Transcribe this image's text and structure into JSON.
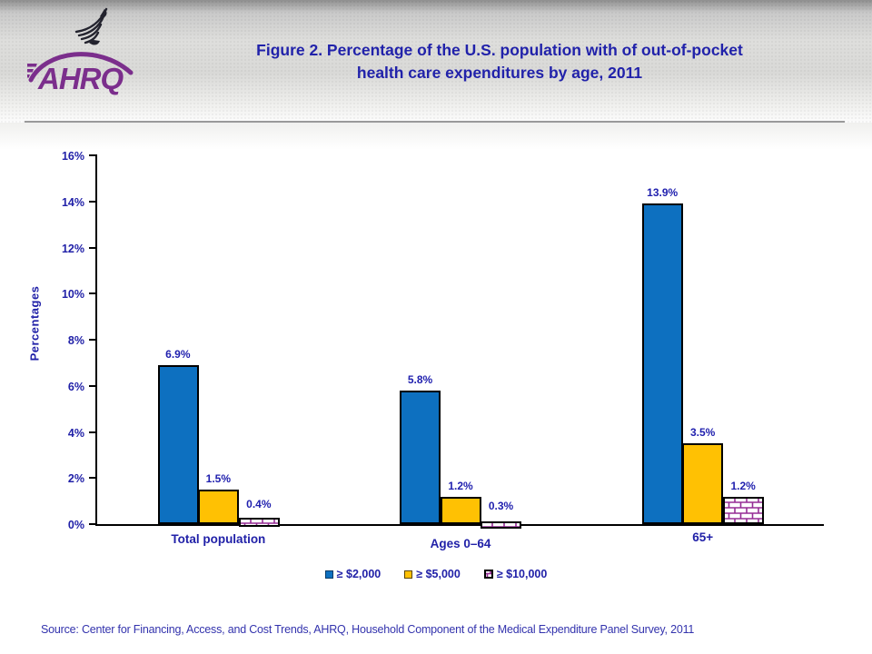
{
  "header": {
    "logo_text": "AHRQ",
    "title_line1": "Figure 2. Percentage of the U.S. population with of out-of-pocket",
    "title_line2": "health care expenditures by age, 2011"
  },
  "chart_data": {
    "type": "bar",
    "title": "Figure 2. Percentage of the U.S. population with of out-of-pocket health care expenditures by age, 2011",
    "categories": [
      "Total population",
      "Ages 0–64",
      "65+"
    ],
    "series": [
      {
        "name": "≥ $2,000",
        "values": [
          6.9,
          5.8,
          13.9
        ],
        "fill": "#0d70c0",
        "style": "solid"
      },
      {
        "name": "≥ $5,000",
        "values": [
          1.5,
          1.2,
          3.5
        ],
        "fill": "#ffc103",
        "style": "solid"
      },
      {
        "name": "≥ $10,000",
        "values": [
          0.4,
          0.3,
          1.2
        ],
        "fill": "#ffffff",
        "style": "brick",
        "pattern_color": "#952d95"
      }
    ],
    "value_labels": [
      [
        "6.9%",
        "5.8%",
        "13.9%"
      ],
      [
        "1.5%",
        "1.2%",
        "3.5%"
      ],
      [
        "0.4%",
        "0.3%",
        "1.2%"
      ]
    ],
    "xlabel": "",
    "ylabel": "Percentages",
    "ylim": [
      0,
      16
    ],
    "ytick_step": 2,
    "ytick_suffix": "%",
    "grid": false,
    "legend_position": "bottom",
    "bar_border_color": "#000000",
    "label_color": "#2121a8"
  },
  "footer": {
    "source": "Source: Center for Financing, Access, and Cost Trends, AHRQ, Household Component of the Medical Expenditure Panel Survey, 2011"
  },
  "colors": {
    "title_text": "#2122aa",
    "axis": "#000000",
    "header_divider": "#9a9a9a",
    "logo_purple": "#7b2e8c"
  }
}
